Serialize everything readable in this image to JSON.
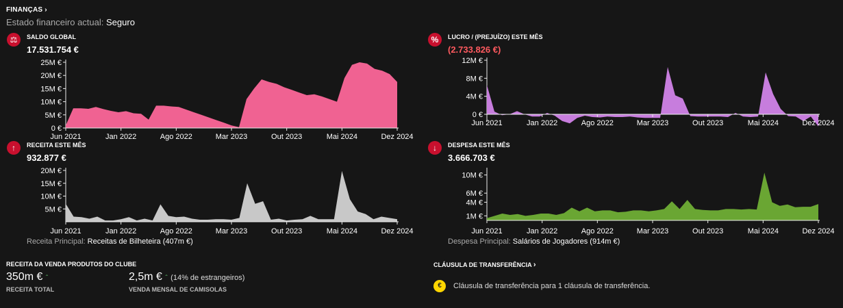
{
  "header": {
    "title": "FINANÇAS",
    "status_label": "Estado financeiro actual:",
    "status_value": "Seguro"
  },
  "colors": {
    "saldo": "#f06292",
    "lucro": "#c77ddd",
    "receita": "#c8c8c8",
    "despesa": "#6aa633",
    "negative": "#ff5a5f"
  },
  "x_ticks": [
    "Jun 2021",
    "Jan 2022",
    "Ago 2022",
    "Mar 2023",
    "Out 2023",
    "Mai 2024",
    "Dez 2024"
  ],
  "panels": {
    "saldo": {
      "title": "SALDO GLOBAL",
      "value": "17.531.754 €",
      "icon": "scale-icon"
    },
    "lucro": {
      "title": "LUCRO / (PREJUÍZO) ESTE MÊS",
      "value": "(2.733.826 €)",
      "icon": "percent-icon"
    },
    "receita": {
      "title": "RECEITA ESTE MÊS",
      "value": "932.877 €",
      "icon": "arrow-up-icon",
      "note_label": "Receita Principal:",
      "note_value": "Receitas de Bilheteira (407m €)"
    },
    "despesa": {
      "title": "DESPESA ESTE MÊS",
      "value": "3.666.703 €",
      "icon": "arrow-down-icon",
      "note_label": "Despesa Principal:",
      "note_value": "Salários de Jogadores (914m €)"
    }
  },
  "merch": {
    "title": "RECEITA DA VENDA PRODUTOS DO CLUBE",
    "total_value": "350m €",
    "total_label": "RECEITA TOTAL",
    "shirts_value": "2,5m €",
    "shirts_note": "(14% de estrangeiros)",
    "shirts_label": "VENDA MENSAL DE CAMISOLAS"
  },
  "clause": {
    "title": "CLÁUSULA DE TRANSFERÊNCIA",
    "text": "Cláusula de transferência para 1 cláusula de transferência."
  },
  "chart_data": [
    {
      "type": "area",
      "name_ref": "saldo",
      "ylim": [
        0,
        25
      ],
      "yticks": [
        0,
        5,
        10,
        15,
        20,
        25
      ],
      "ytick_labels": [
        "0 €",
        "5M €",
        "10M €",
        "15M €",
        "20M €",
        "25M €"
      ],
      "values": [
        1.0,
        7.5,
        7.5,
        7.3,
        8.0,
        7.2,
        6.5,
        6.0,
        6.4,
        5.6,
        5.4,
        3.2,
        8.5,
        8.5,
        8.2,
        8.0,
        7.0,
        6.0,
        5.0,
        4.0,
        3.0,
        2.0,
        1.0,
        0.3,
        11.0,
        15.0,
        18.5,
        17.5,
        16.8,
        15.5,
        14.5,
        13.5,
        12.5,
        12.8,
        12.0,
        11.0,
        10.0,
        19.0,
        24.0,
        25.0,
        24.5,
        22.5,
        21.8,
        20.5,
        17.5
      ]
    },
    {
      "type": "area",
      "name_ref": "lucro",
      "ylim": [
        -2.5,
        12
      ],
      "yticks": [
        0,
        4,
        8,
        12
      ],
      "ytick_labels": [
        "0 €",
        "4M €",
        "8M €",
        "12M €"
      ],
      "values": [
        6.5,
        0.6,
        -0.2,
        0.0,
        0.7,
        0.0,
        -0.5,
        -0.5,
        0.3,
        -0.3,
        -1.5,
        -2.0,
        -0.8,
        -0.3,
        -0.6,
        -0.7,
        -0.5,
        -0.6,
        -0.6,
        -0.5,
        -0.7,
        -0.8,
        -0.8,
        -0.8,
        10.5,
        4.2,
        3.5,
        -0.4,
        -0.5,
        -0.5,
        -0.5,
        -0.5,
        -0.6,
        0.3,
        -0.5,
        -0.6,
        -0.5,
        9.3,
        4.5,
        1.2,
        -0.4,
        -0.5,
        -1.5,
        -0.5,
        -2.7
      ]
    },
    {
      "type": "area",
      "name_ref": "receita",
      "ylim": [
        0,
        20
      ],
      "yticks": [
        5,
        10,
        15,
        20
      ],
      "ytick_labels": [
        "5M €",
        "10M €",
        "15M €",
        "20M €"
      ],
      "values": [
        7.0,
        2.0,
        1.8,
        1.2,
        2.0,
        0.5,
        0.5,
        1.0,
        1.8,
        0.5,
        1.2,
        0.5,
        6.8,
        2.3,
        1.8,
        2.0,
        1.2,
        0.8,
        0.8,
        1.0,
        1.0,
        0.8,
        1.5,
        15.0,
        7.0,
        8.0,
        0.8,
        1.2,
        0.5,
        0.8,
        1.0,
        2.3,
        1.0,
        1.0,
        1.0,
        19.8,
        8.8,
        4.0,
        3.0,
        1.0,
        2.0,
        1.5,
        1.0
      ]
    },
    {
      "type": "area",
      "name_ref": "despesa",
      "ylim": [
        0,
        11
      ],
      "yticks": [
        1,
        4,
        6,
        10
      ],
      "ytick_labels": [
        "1M €",
        "4M €",
        "6M €",
        "10M €"
      ],
      "values": [
        0.5,
        1.0,
        1.5,
        1.2,
        1.4,
        1.0,
        1.2,
        1.5,
        1.5,
        1.2,
        1.6,
        2.8,
        2.0,
        2.8,
        2.0,
        2.2,
        2.2,
        1.8,
        1.9,
        2.2,
        2.2,
        2.0,
        2.2,
        2.5,
        4.2,
        2.5,
        4.5,
        2.5,
        2.3,
        2.2,
        2.2,
        2.5,
        2.5,
        2.4,
        2.5,
        2.4,
        10.5,
        4.0,
        3.2,
        3.5,
        2.9,
        3.0,
        3.0,
        3.6
      ]
    }
  ]
}
